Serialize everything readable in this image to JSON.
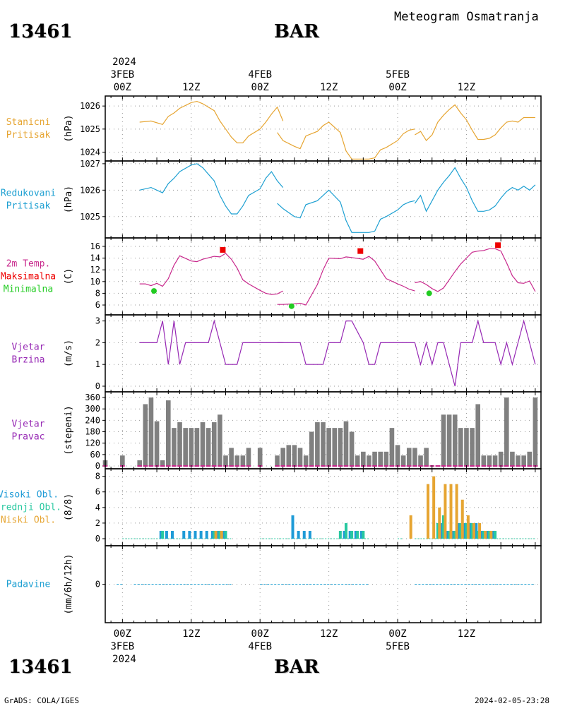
{
  "header": {
    "station_id": "13461",
    "station_name": "BAR",
    "title": "Meteogram Osmatranja"
  },
  "footer": {
    "credit": "GrADS: COLA/IGES",
    "timestamp": "2024-02-05-23:28"
  },
  "time_axis": {
    "year": "2024",
    "day_labels": [
      "3FEB",
      "4FEB",
      "5FEB"
    ],
    "hour_labels": [
      "00Z",
      "12Z",
      "00Z",
      "12Z",
      "00Z",
      "12Z"
    ]
  },
  "colors": {
    "pressure_station": "#e6a532",
    "pressure_reduced": "#1ea0d2",
    "temp": "#c8288c",
    "temp_max": "#ee0000",
    "temp_min": "#22cc22",
    "wind": "#9628b4",
    "wind_dir_bar": "#808080",
    "cloud_high": "#1e9bd7",
    "cloud_mid": "#28c8a0",
    "cloud_low": "#e6a532",
    "precip": "#1ea0d2"
  },
  "chart_data": [
    {
      "type": "line",
      "panel_label": [
        "Stanicni",
        "Pritisak"
      ],
      "ylabel": "(hPa)",
      "ylim": [
        1023.8,
        1026.25
      ],
      "yticks": [
        1024,
        1025,
        1026
      ],
      "x_unit": "hours since 3FEB 00Z",
      "series": [
        {
          "segments": [
            {
              "x": [
                3,
                5,
                7,
                8,
                9,
                10,
                12,
                13,
                14,
                16,
                17,
                18,
                19,
                20,
                21,
                22,
                24
              ],
              "y": [
                1025.3,
                1025.35,
                1025.2,
                1025.55,
                1025.7,
                1025.9,
                1026.15,
                1026.2,
                1026.1,
                1025.8,
                1025.35,
                1025.0,
                1024.65,
                1024.4,
                1024.4,
                1024.7,
                1025.0
              ]
            },
            {
              "x": [
                24,
                25,
                26,
                27,
                28
              ],
              "y": [
                1025.0,
                1025.3,
                1025.65,
                1025.95,
                1025.35
              ]
            },
            {
              "x": [
                27,
                28,
                30,
                31,
                32,
                34,
                35,
                36,
                38,
                39,
                40,
                42,
                43,
                44,
                45,
                46,
                48,
                49,
                50,
                51
              ],
              "y": [
                1024.85,
                1024.5,
                1024.25,
                1024.15,
                1024.7,
                1024.9,
                1025.15,
                1025.3,
                1024.85,
                1024.05,
                1023.7,
                1023.7,
                1023.7,
                1023.75,
                1024.1,
                1024.2,
                1024.5,
                1024.8,
                1024.95,
                1025.0
              ]
            },
            {
              "x": [
                51,
                52,
                53,
                54,
                55,
                56,
                57,
                58,
                59,
                60,
                61,
                62,
                63,
                64,
                65,
                66,
                67,
                68,
                69,
                70,
                71,
                72
              ],
              "y": [
                1024.75,
                1024.9,
                1024.5,
                1024.75,
                1025.3,
                1025.6,
                1025.85,
                1026.05,
                1025.7,
                1025.4,
                1024.95,
                1024.55,
                1024.55,
                1024.6,
                1024.75,
                1025.05,
                1025.3,
                1025.35,
                1025.3,
                1025.5,
                1025.5,
                1025.5
              ]
            }
          ]
        }
      ]
    },
    {
      "type": "line",
      "panel_label": [
        "Redukovani",
        "Pritisak"
      ],
      "ylabel": "(hPa)",
      "ylim": [
        1024.3,
        1027.05
      ],
      "yticks": [
        1025,
        1026,
        1027
      ],
      "x_unit": "hours since 3FEB 00Z",
      "series": [
        {
          "segments": [
            {
              "x": [
                3,
                5,
                7,
                8,
                9,
                10,
                12,
                13,
                14,
                16,
                17,
                18,
                19,
                20,
                21,
                22,
                24,
                25,
                26,
                27,
                28
              ],
              "y": [
                1026.0,
                1026.1,
                1025.9,
                1026.25,
                1026.45,
                1026.7,
                1026.95,
                1027.0,
                1026.85,
                1026.35,
                1025.8,
                1025.4,
                1025.1,
                1025.1,
                1025.4,
                1025.8,
                1026.05,
                1026.45,
                1026.7,
                1026.35,
                1026.1
              ]
            },
            {
              "x": [
                27,
                28,
                30,
                31,
                32,
                34,
                35,
                36,
                38,
                39,
                40,
                42,
                43,
                44,
                45,
                46,
                48,
                49,
                50,
                51
              ],
              "y": [
                1025.5,
                1025.3,
                1025.0,
                1024.95,
                1025.45,
                1025.6,
                1025.8,
                1026.0,
                1025.55,
                1024.85,
                1024.4,
                1024.4,
                1024.4,
                1024.45,
                1024.9,
                1025.0,
                1025.25,
                1025.45,
                1025.55,
                1025.6
              ]
            },
            {
              "x": [
                51,
                52,
                53,
                54,
                55,
                56,
                57,
                58,
                59,
                60,
                61,
                62,
                63,
                64,
                65,
                66,
                67,
                68,
                69,
                70,
                71,
                72
              ],
              "y": [
                1025.5,
                1025.8,
                1025.2,
                1025.6,
                1026.0,
                1026.3,
                1026.55,
                1026.85,
                1026.45,
                1026.1,
                1025.6,
                1025.2,
                1025.2,
                1025.25,
                1025.4,
                1025.7,
                1025.95,
                1026.1,
                1026.0,
                1026.15,
                1026.0,
                1026.2
              ]
            }
          ]
        }
      ]
    },
    {
      "type": "line",
      "panel_label": [
        "2m Temp.",
        "Maksimalna",
        "Minimalna"
      ],
      "ylabel": "(C)",
      "ylim": [
        4.8,
        17.2
      ],
      "yticks": [
        6,
        8,
        10,
        12,
        14,
        16
      ],
      "x_unit": "hours since 3FEB 00Z",
      "series": [
        {
          "segments": [
            {
              "x": [
                3,
                4,
                5,
                6,
                7,
                8,
                9,
                10,
                12,
                13,
                14,
                16,
                17,
                18,
                19,
                20,
                21,
                22,
                24,
                25,
                26,
                27,
                28
              ],
              "y": [
                9.6,
                9.6,
                9.3,
                9.7,
                9.2,
                10.5,
                12.8,
                14.4,
                13.5,
                13.4,
                13.8,
                14.3,
                14.2,
                14.8,
                13.8,
                12.3,
                10.3,
                9.6,
                8.5,
                8.0,
                7.8,
                7.9,
                8.4
              ]
            },
            {
              "x": [
                27,
                28,
                30,
                31,
                32,
                34,
                35,
                36,
                38,
                39,
                40,
                42,
                43,
                44,
                45,
                46,
                48,
                49,
                50,
                51
              ],
              "y": [
                6.1,
                6.1,
                6.2,
                6.3,
                6.0,
                9.5,
                12.0,
                14.0,
                13.9,
                14.2,
                14.1,
                13.8,
                14.3,
                13.5,
                12.0,
                10.5,
                9.6,
                9.2,
                8.7,
                8.4
              ]
            },
            {
              "x": [
                51,
                52,
                53,
                54,
                55,
                56,
                57,
                58,
                59,
                60,
                61,
                62,
                63,
                64,
                65,
                66,
                67,
                68,
                69,
                70,
                71,
                72
              ],
              "y": [
                9.8,
                10.0,
                9.5,
                8.8,
                8.3,
                8.9,
                10.3,
                11.7,
                13.0,
                14.0,
                15.0,
                15.2,
                15.3,
                15.6,
                15.6,
                15.2,
                13.2,
                11.0,
                9.8,
                9.7,
                10.1,
                8.3
              ]
            }
          ]
        }
      ],
      "max_points": {
        "x": [
          17.5,
          41.5,
          65.5
        ],
        "y": [
          15.4,
          15.2,
          16.2
        ]
      },
      "min_points": {
        "x": [
          5.5,
          29.5,
          53.5
        ],
        "y": [
          8.4,
          5.8,
          8.0
        ]
      }
    },
    {
      "type": "line",
      "panel_label": [
        "Vjetar",
        "Brzina"
      ],
      "ylabel": "(m/s)",
      "ylim": [
        0,
        3.15
      ],
      "yticks": [
        0,
        1,
        2,
        3
      ],
      "x_unit": "hours since 3FEB 00Z",
      "series": [
        {
          "segments": [
            {
              "x": [
                3,
                4,
                5,
                6,
                7,
                8,
                9,
                10,
                11,
                12,
                13,
                14,
                15,
                16,
                17,
                18,
                19,
                20,
                21,
                22,
                24,
                25,
                26,
                27,
                28
              ],
              "y": [
                2,
                2,
                2,
                2,
                3,
                1,
                3,
                1,
                2,
                2,
                2,
                2,
                2,
                3,
                2,
                1,
                1,
                1,
                2,
                2,
                2,
                2,
                2,
                2,
                2
              ]
            },
            {
              "x": [
                27,
                28,
                30,
                31,
                32,
                34,
                35,
                36,
                38,
                39,
                40,
                42,
                43,
                44,
                45,
                46,
                48,
                49,
                50,
                51
              ],
              "y": [
                2,
                2,
                2,
                2,
                1,
                1,
                1,
                2,
                2,
                3,
                3,
                2,
                1,
                1,
                2,
                2,
                2,
                2,
                2,
                2
              ]
            },
            {
              "x": [
                51,
                52,
                53,
                54,
                55,
                56,
                57,
                58,
                59,
                60,
                61,
                62,
                63,
                64,
                65,
                66,
                67,
                68,
                69,
                70,
                71,
                72
              ],
              "y": [
                2,
                1,
                2,
                1,
                2,
                2,
                1,
                0,
                2,
                2,
                2,
                3,
                2,
                2,
                2,
                1,
                2,
                1,
                2,
                3,
                2,
                1
              ]
            }
          ]
        }
      ]
    },
    {
      "type": "bar",
      "panel_label": [
        "Vjetar",
        "Pravac"
      ],
      "ylabel": "(stepeni)",
      "ylim": [
        0,
        375
      ],
      "yticks": [
        0,
        60,
        120,
        180,
        240,
        300,
        360
      ],
      "x_unit": "hours since 3FEB 00Z",
      "x": [
        -3,
        0,
        3,
        4,
        5,
        6,
        7,
        8,
        9,
        10,
        11,
        12,
        13,
        14,
        15,
        16,
        17,
        18,
        19,
        20,
        21,
        22,
        24,
        27,
        28,
        29,
        30,
        31,
        32,
        33,
        34,
        35,
        36,
        37,
        38,
        39,
        40,
        41,
        42,
        43,
        44,
        45,
        46,
        47,
        48,
        49,
        50,
        51,
        52,
        53,
        54,
        55,
        56,
        57,
        58,
        59,
        60,
        61,
        62,
        63,
        64,
        65,
        66,
        67,
        68,
        69,
        70,
        71,
        72
      ],
      "values": [
        30,
        55,
        30,
        325,
        360,
        235,
        30,
        345,
        200,
        230,
        200,
        200,
        200,
        230,
        200,
        230,
        270,
        55,
        95,
        55,
        55,
        95,
        95,
        55,
        95,
        110,
        110,
        95,
        55,
        180,
        230,
        230,
        200,
        200,
        200,
        235,
        180,
        55,
        75,
        55,
        75,
        75,
        75,
        200,
        110,
        55,
        95,
        95,
        55,
        95,
        0,
        0,
        270,
        270,
        270,
        200,
        200,
        200,
        325,
        55,
        55,
        55,
        75,
        360,
        75,
        55,
        55,
        75,
        360
      ],
      "baseline_marks_color": "#c8288c"
    },
    {
      "type": "bar",
      "panel_label": [
        "Visoki Obl.",
        "Srednji Obl.",
        "Niski Obl."
      ],
      "ylabel": "(8/8)",
      "ylim": [
        0,
        8.6
      ],
      "yticks": [
        0,
        2,
        4,
        6,
        8
      ],
      "x_unit": "hours since 3FEB 00Z",
      "series": [
        {
          "name": "Visoki Obl.",
          "x": [
            7,
            8,
            9,
            11,
            12,
            13,
            14,
            15,
            16,
            17,
            18,
            30,
            31,
            32,
            33,
            39,
            40,
            41,
            42,
            56,
            57,
            58,
            59,
            60,
            61,
            62,
            63,
            64,
            65
          ],
          "values": [
            1,
            1,
            1,
            1,
            1,
            1,
            1,
            1,
            1,
            1,
            1,
            3,
            1,
            1,
            1,
            1,
            1,
            1,
            1,
            2,
            1,
            1,
            2,
            2,
            2,
            2,
            1,
            1,
            1
          ]
        },
        {
          "name": "Srednji Obl.",
          "x": [
            7,
            16,
            17,
            18,
            38,
            39,
            40,
            41,
            42,
            55,
            56,
            57,
            58,
            59,
            60,
            61,
            62,
            63,
            64,
            65
          ],
          "values": [
            1,
            1,
            1,
            1,
            1,
            2,
            1,
            1,
            1,
            2,
            3,
            1,
            1,
            2,
            2,
            2,
            1,
            1,
            1,
            1
          ]
        },
        {
          "name": "Niski Obl.",
          "x": [
            16,
            17,
            50,
            53,
            54,
            55,
            56,
            57,
            58,
            59,
            60,
            61,
            62,
            63,
            64
          ],
          "values": [
            1,
            1,
            3,
            7,
            8,
            4,
            7,
            7,
            7,
            5,
            3,
            2,
            2,
            1,
            1
          ]
        }
      ]
    },
    {
      "type": "bar",
      "panel_label": [
        "Padavine"
      ],
      "ylabel": "(mm/6h/12h)",
      "ylim": [
        -1,
        1
      ],
      "yticks": [
        0
      ],
      "x_unit": "hours since 3FEB 00Z",
      "values": [
        0
      ]
    }
  ]
}
